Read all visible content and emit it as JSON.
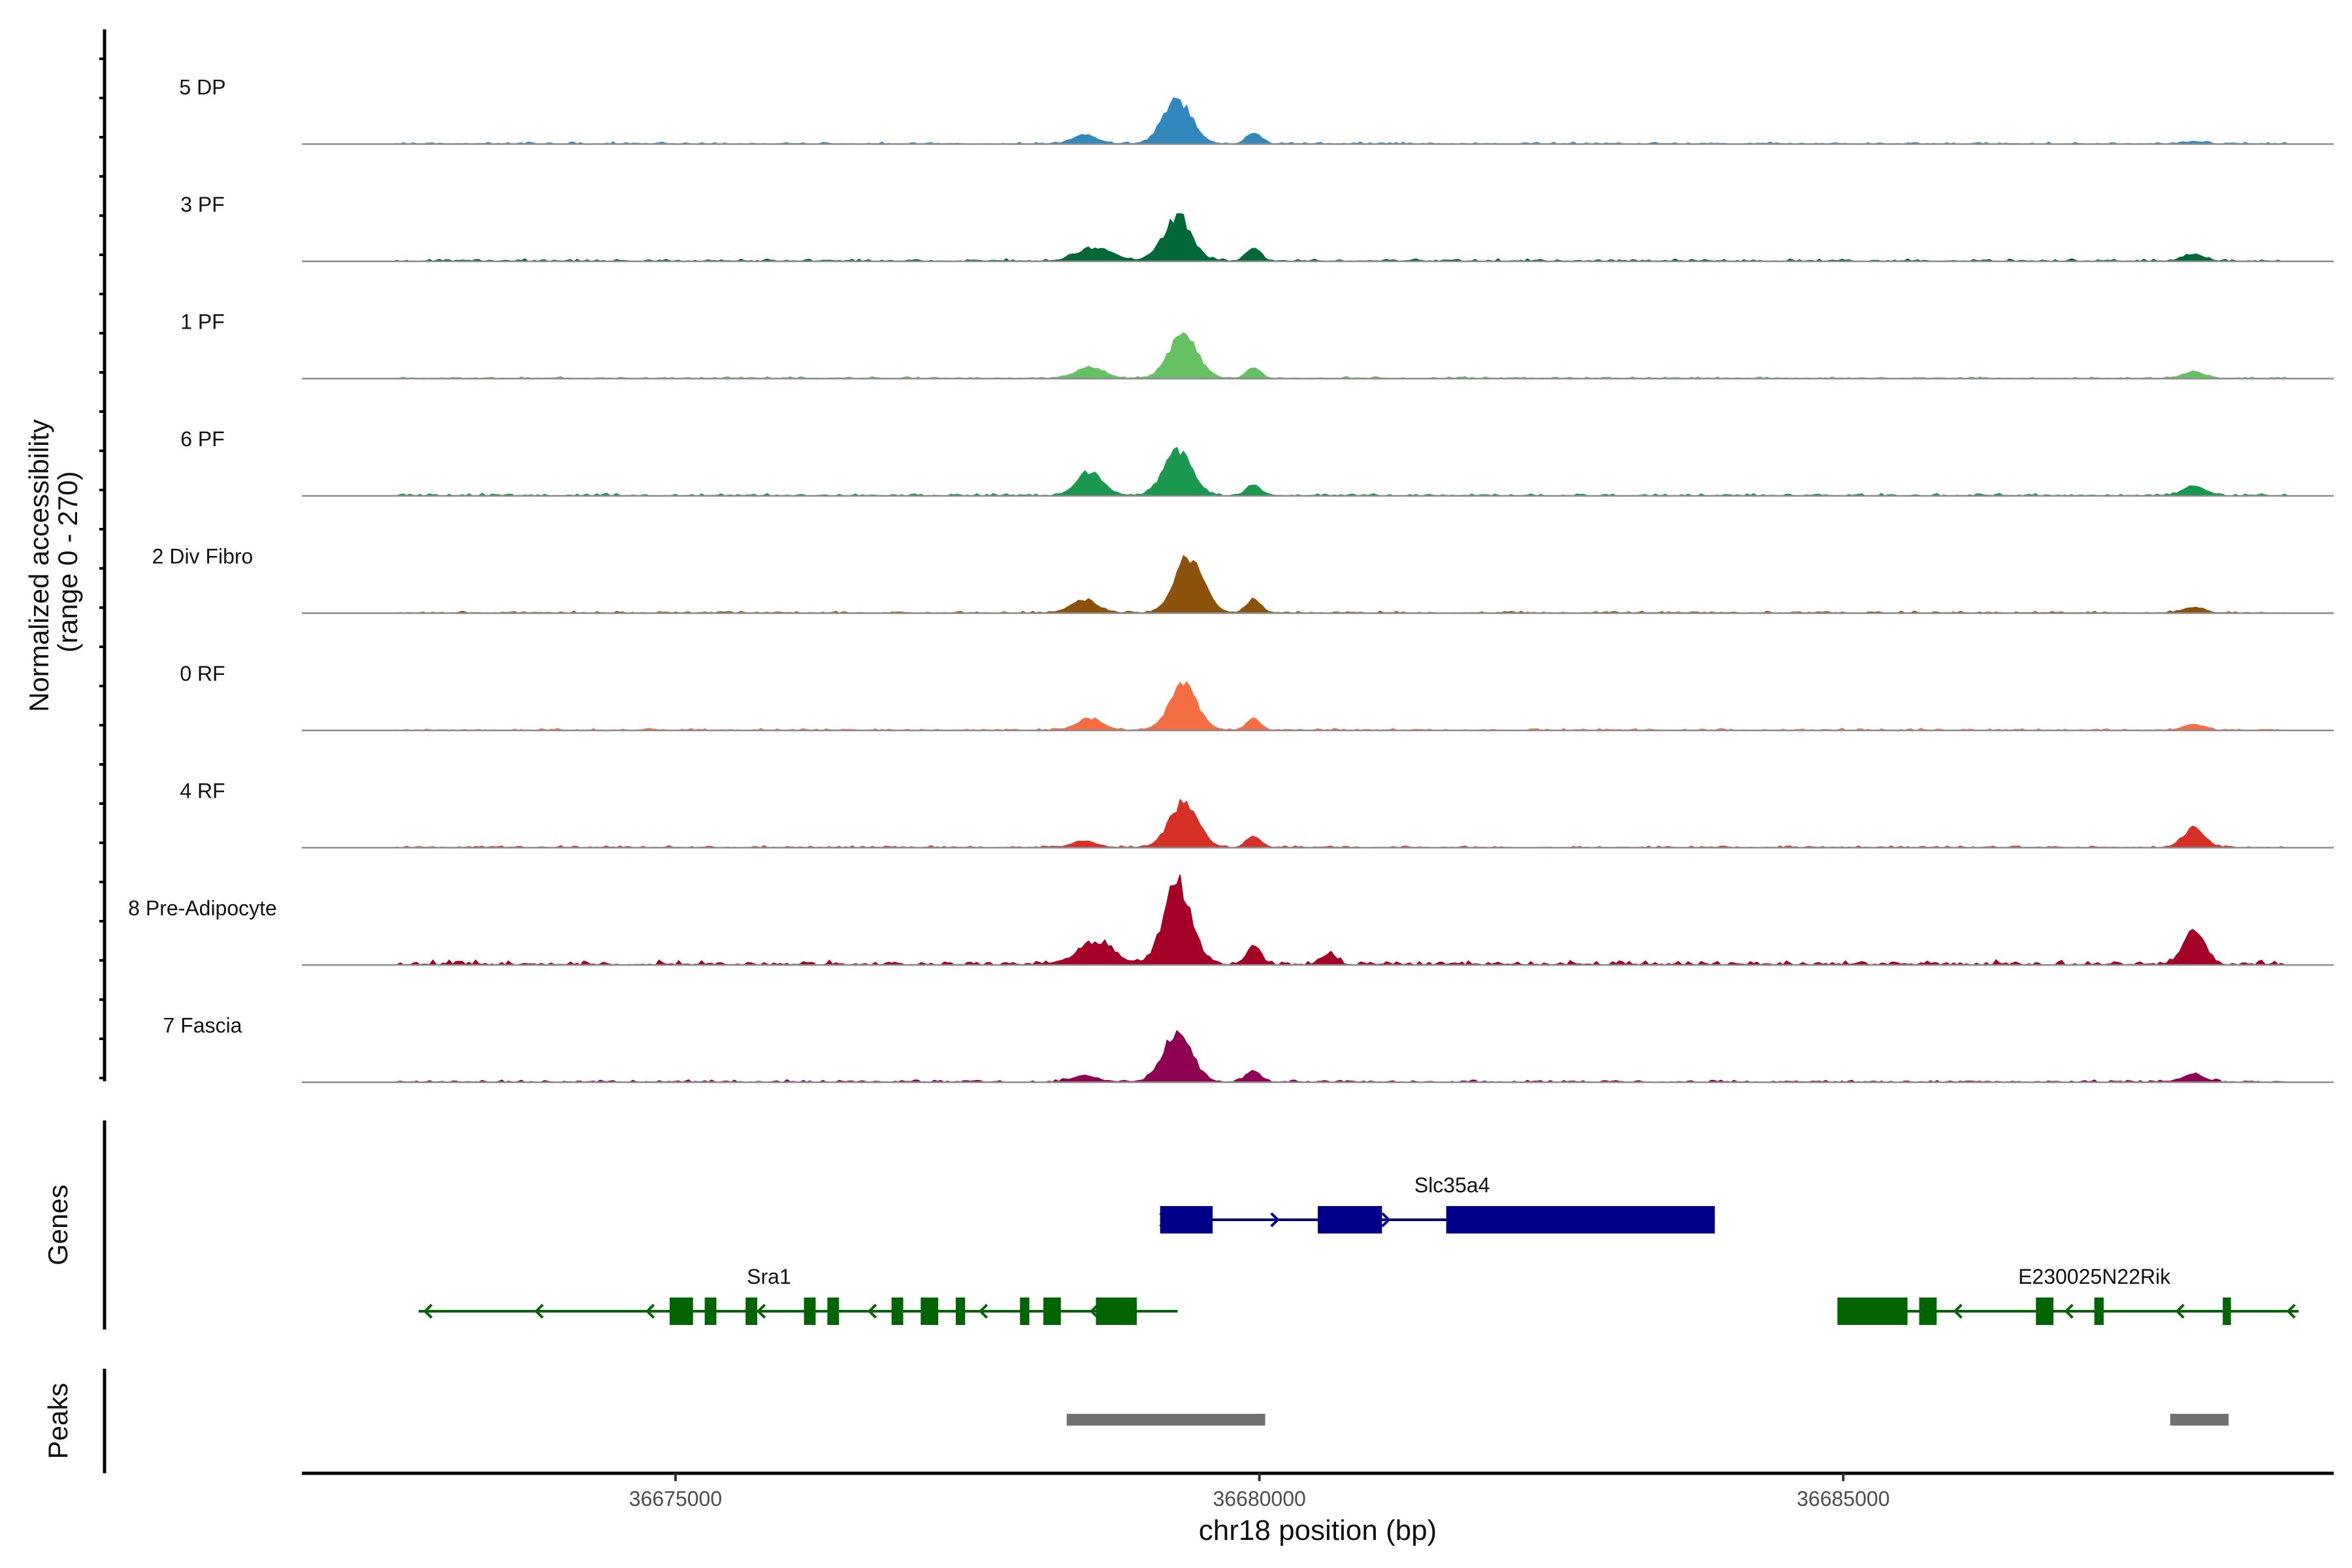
{
  "chart_data": {
    "type": "area",
    "chromosome": "chr18",
    "x_range": [
      36671800,
      36689200
    ],
    "y_axis_label_line1": "Normalized accessibility",
    "y_axis_label_line2": "(range 0 - 270)",
    "y_range": [
      0,
      270
    ],
    "x_axis_label": "chr18 position (bp)",
    "x_ticks": [
      {
        "value": 36675000,
        "label": "36675000"
      },
      {
        "value": 36680000,
        "label": "36680000"
      },
      {
        "value": 36685000,
        "label": "36685000"
      }
    ],
    "track_section_labels": {
      "genes": "Genes",
      "peaks": "Peaks"
    },
    "tracks": [
      {
        "name": "5 DP",
        "color": "#3288BD",
        "noise": 0.04,
        "secondary_peak": 0.02,
        "peaks": [
          [
            36679300,
            120,
            0.4
          ],
          [
            36678500,
            100,
            0.08
          ],
          [
            36679950,
            60,
            0.1
          ]
        ]
      },
      {
        "name": "3 PF",
        "color": "#006837",
        "noise": 0.05,
        "secondary_peak": 0.06,
        "peaks": [
          [
            36679300,
            120,
            0.4
          ],
          [
            36678600,
            150,
            0.12
          ],
          [
            36679950,
            60,
            0.12
          ]
        ]
      },
      {
        "name": "1 PF",
        "color": "#66C164",
        "noise": 0.04,
        "secondary_peak": 0.06,
        "peaks": [
          [
            36679350,
            120,
            0.4
          ],
          [
            36678550,
            120,
            0.1
          ],
          [
            36679950,
            60,
            0.1
          ]
        ]
      },
      {
        "name": "6 PF",
        "color": "#1A9850",
        "noise": 0.05,
        "secondary_peak": 0.09,
        "peaks": [
          [
            36679300,
            120,
            0.4
          ],
          [
            36678550,
            110,
            0.22
          ],
          [
            36679950,
            60,
            0.1
          ]
        ]
      },
      {
        "name": "2 Div Fibro",
        "color": "#8C510A",
        "noise": 0.04,
        "secondary_peak": 0.05,
        "peaks": [
          [
            36679400,
            120,
            0.52
          ],
          [
            36678500,
            110,
            0.12
          ],
          [
            36679950,
            60,
            0.12
          ]
        ]
      },
      {
        "name": "0 RF",
        "color": "#F46D43",
        "noise": 0.04,
        "secondary_peak": 0.05,
        "peaks": [
          [
            36679350,
            120,
            0.4
          ],
          [
            36678550,
            110,
            0.1
          ],
          [
            36679950,
            60,
            0.1
          ]
        ]
      },
      {
        "name": "4 RF",
        "color": "#D73027",
        "noise": 0.04,
        "secondary_peak": 0.18,
        "peaks": [
          [
            36679350,
            120,
            0.42
          ],
          [
            36678500,
            100,
            0.06
          ],
          [
            36679950,
            60,
            0.1
          ]
        ]
      },
      {
        "name": "8 Pre-Adipocyte",
        "color": "#A50026",
        "noise": 0.1,
        "secondary_peak": 0.3,
        "peaks": [
          [
            36679300,
            120,
            0.74
          ],
          [
            36678600,
            150,
            0.2
          ],
          [
            36679950,
            60,
            0.16
          ],
          [
            36680600,
            60,
            0.1
          ]
        ]
      },
      {
        "name": "7 Fascia",
        "color": "#8E0152",
        "noise": 0.05,
        "secondary_peak": 0.07,
        "peaks": [
          [
            36679300,
            120,
            0.46
          ],
          [
            36678500,
            100,
            0.06
          ],
          [
            36679950,
            60,
            0.1
          ]
        ]
      }
    ],
    "genes": [
      {
        "name": "Slc35a4",
        "strand": "+",
        "color": "#00008B",
        "start": 36679150,
        "end": 36683900,
        "exons": [
          [
            36679150,
            36679600
          ],
          [
            36680500,
            36681050
          ],
          [
            36681600,
            36683900
          ]
        ],
        "label_pos": 36681650
      },
      {
        "name": "Sra1",
        "strand": "-",
        "color": "#006400",
        "start": 36672800,
        "end": 36679300,
        "exons": [
          [
            36674950,
            36675150
          ],
          [
            36675250,
            36675350
          ],
          [
            36675600,
            36675700
          ],
          [
            36676100,
            36676200
          ],
          [
            36676300,
            36676400
          ],
          [
            36676850,
            36676950
          ],
          [
            36677100,
            36677250
          ],
          [
            36677400,
            36677480
          ],
          [
            36677950,
            36678030
          ],
          [
            36678150,
            36678300
          ],
          [
            36678600,
            36678950
          ]
        ],
        "label_pos": 36675800
      },
      {
        "name": "E230025N22Rik",
        "strand": "-",
        "color": "#006400",
        "start": 36684950,
        "end": 36688900,
        "exons": [
          [
            36684950,
            36685550
          ],
          [
            36685650,
            36685800
          ],
          [
            36686650,
            36686800
          ],
          [
            36687150,
            36687230
          ],
          [
            36688250,
            36688320
          ]
        ],
        "label_pos": 36687150
      }
    ],
    "peaks": [
      [
        36678350,
        36680050
      ],
      [
        36687800,
        36688300
      ]
    ]
  }
}
